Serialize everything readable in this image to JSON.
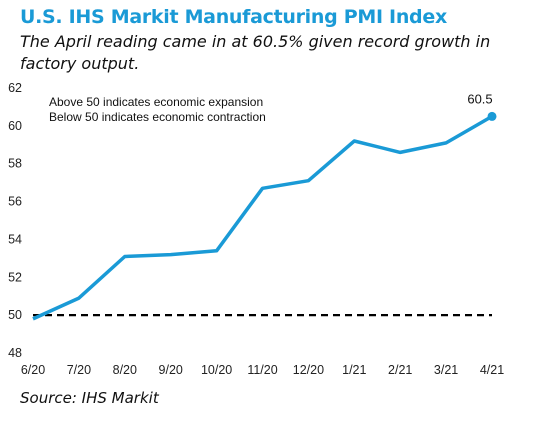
{
  "title": "U.S. IHS Markit Manufacturing PMI Index",
  "subtitle": "The April reading came in at 60.5% given record growth in factory output.",
  "source": "Source:  IHS Markit",
  "chart_data": {
    "type": "line",
    "categories": [
      "6/20",
      "7/20",
      "8/20",
      "9/20",
      "10/20",
      "11/20",
      "12/20",
      "1/21",
      "2/21",
      "3/21",
      "4/21"
    ],
    "series": [
      {
        "values": [
          49.8,
          50.9,
          53.1,
          53.2,
          53.4,
          56.7,
          57.1,
          59.2,
          58.6,
          59.1,
          60.5
        ],
        "color": "#1a9ad6"
      }
    ],
    "yticks": [
      48,
      50,
      52,
      54,
      56,
      58,
      60,
      62
    ],
    "ylim": [
      48,
      62
    ],
    "reference_line": {
      "value": 50,
      "style": "dashed",
      "color": "#000000"
    },
    "annotations": [
      "Above 50 indicates economic expansion",
      "Below 50 indicates economic contraction"
    ],
    "end_label": "60.5",
    "grid": false
  }
}
